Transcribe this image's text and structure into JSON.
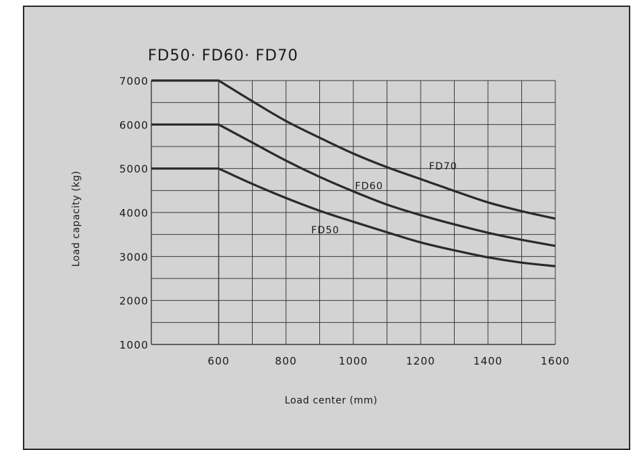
{
  "chart_data": {
    "type": "line",
    "title": "FD50· FD60· FD70",
    "xlabel": "Load center (mm)",
    "ylabel": "Load capacity (kg)",
    "xlim": [
      400,
      1600
    ],
    "ylim": [
      1000,
      7000
    ],
    "xticks": [
      "600",
      "800",
      "1000",
      "1200",
      "1400",
      "1600"
    ],
    "yticks": [
      "1000",
      "2000",
      "3000",
      "4000",
      "5000",
      "6000",
      "7000"
    ],
    "grid": true,
    "series": [
      {
        "name": "FD70",
        "x": [
          400,
          600,
          700,
          800,
          900,
          1000,
          1100,
          1200,
          1300,
          1400,
          1500,
          1600
        ],
        "y": [
          7000,
          7000,
          6530,
          6080,
          5700,
          5340,
          5030,
          4760,
          4490,
          4230,
          4030,
          3860
        ]
      },
      {
        "name": "FD60",
        "x": [
          400,
          600,
          700,
          800,
          900,
          1000,
          1100,
          1200,
          1300,
          1400,
          1500,
          1600
        ],
        "y": [
          6000,
          6000,
          5590,
          5180,
          4810,
          4480,
          4180,
          3940,
          3730,
          3540,
          3380,
          3240
        ]
      },
      {
        "name": "FD50",
        "x": [
          400,
          600,
          700,
          800,
          900,
          1000,
          1100,
          1200,
          1300,
          1400,
          1500,
          1600
        ],
        "y": [
          5000,
          5000,
          4650,
          4330,
          4040,
          3790,
          3550,
          3320,
          3140,
          2980,
          2860,
          2780
        ]
      }
    ]
  },
  "colors": {
    "panel_background": "#d4d3d4",
    "line": "#2a2a2a",
    "grid": "#3a3a3a"
  }
}
